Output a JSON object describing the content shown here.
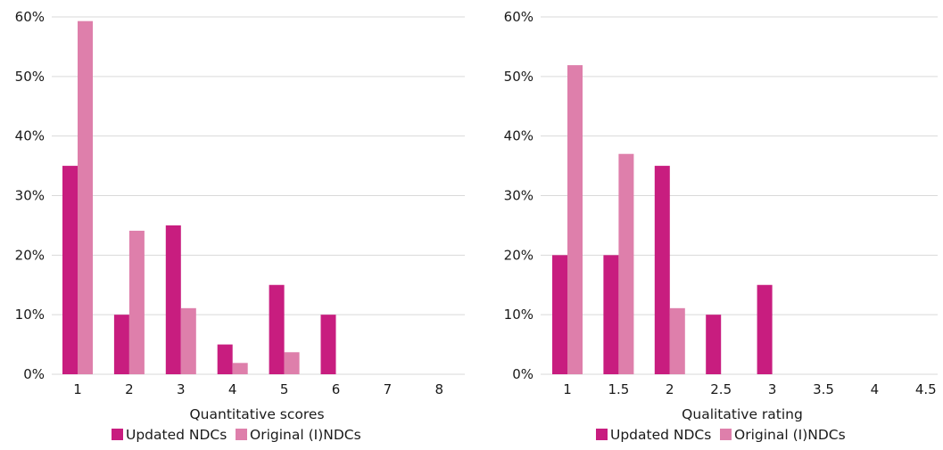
{
  "colors": {
    "updated": "#c81d7f",
    "original": "#de7fab",
    "grid": "#d9d9d9",
    "text": "#1a1a1a"
  },
  "chart_data": [
    {
      "type": "bar",
      "xlabel": "Quantitative scores",
      "ylabel": "",
      "categories": [
        "1",
        "2",
        "3",
        "4",
        "5",
        "6",
        "7",
        "8"
      ],
      "ylim": [
        0,
        60
      ],
      "yticks": [
        "0%",
        "10%",
        "20%",
        "30%",
        "40%",
        "50%",
        "60%"
      ],
      "grid": true,
      "legend_position": "bottom",
      "series": [
        {
          "name": "Updated NDCs",
          "color": "#c81d7f",
          "values": [
            35,
            10,
            25,
            5,
            15,
            10,
            0,
            0
          ]
        },
        {
          "name": "Original (I)NDCs",
          "color": "#de7fab",
          "values": [
            59.3,
            24.1,
            11.1,
            1.9,
            3.7,
            0,
            0,
            0
          ]
        }
      ]
    },
    {
      "type": "bar",
      "xlabel": "Qualitative rating",
      "ylabel": "",
      "categories": [
        "1",
        "1.5",
        "2",
        "2.5",
        "3",
        "3.5",
        "4",
        "4.5"
      ],
      "ylim": [
        0,
        60
      ],
      "yticks": [
        "0%",
        "10%",
        "20%",
        "30%",
        "40%",
        "50%",
        "60%"
      ],
      "grid": true,
      "legend_position": "bottom",
      "series": [
        {
          "name": "Updated NDCs",
          "color": "#c81d7f",
          "values": [
            20,
            20,
            35,
            10,
            15,
            0,
            0,
            0
          ]
        },
        {
          "name": "Original (I)NDCs",
          "color": "#de7fab",
          "values": [
            51.9,
            37,
            11.1,
            0,
            0,
            0,
            0,
            0
          ]
        }
      ]
    }
  ]
}
